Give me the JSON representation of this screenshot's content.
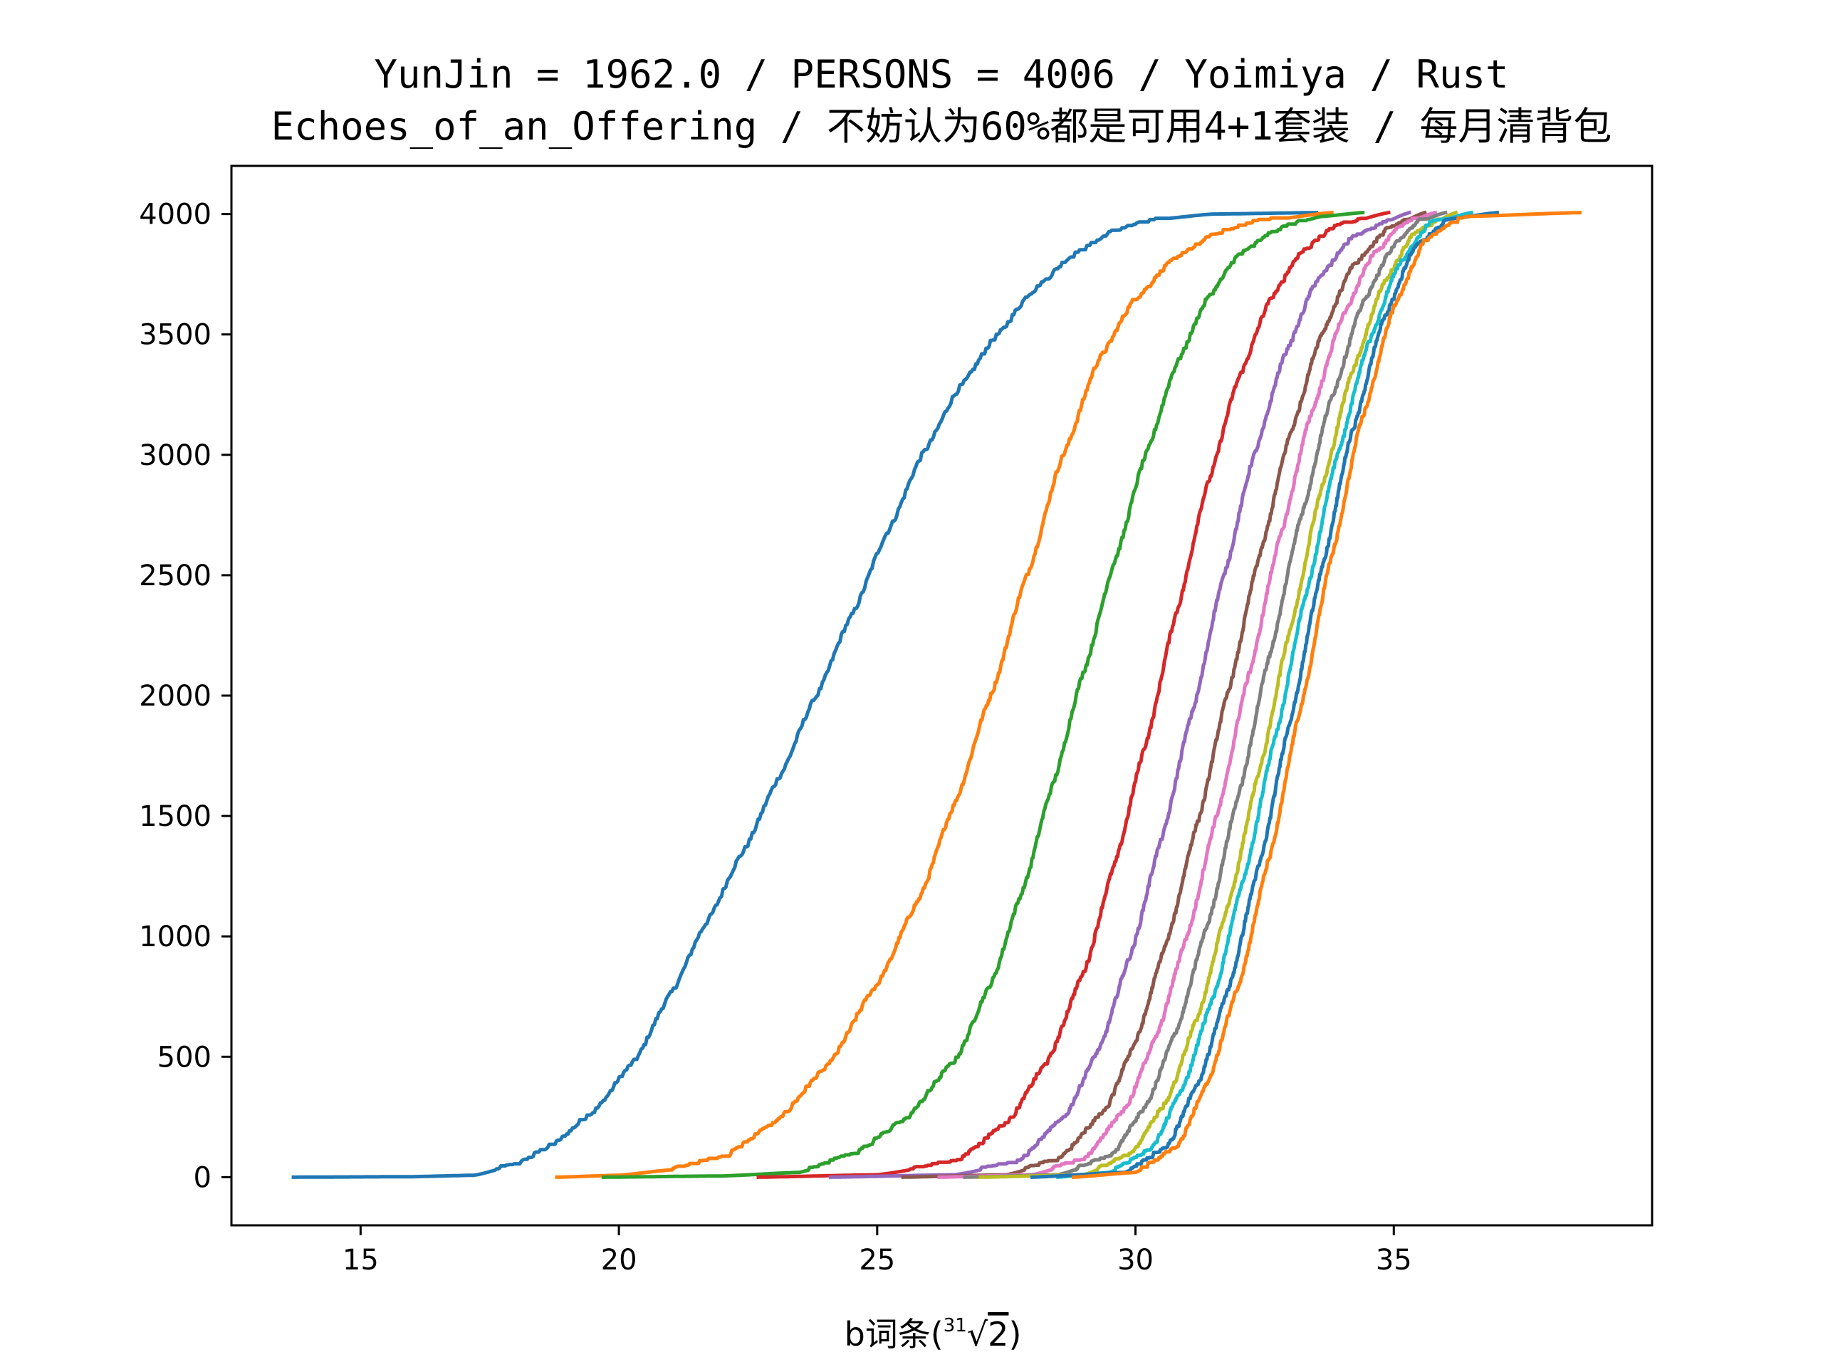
{
  "chart_data": {
    "type": "line",
    "title": [
      "YunJin = 1962.0 / PERSONS = 4006 / Yoimiya / Rust",
      "Echoes_of_an_Offering / 不妨认为60%都是可用4+1套装 / 每月清背包"
    ],
    "xlabel": "b词条(∛2)",
    "xlabel_parts": {
      "prefix": "b词条(",
      "root_index": "31",
      "radicand": "2",
      "suffix": ")"
    },
    "ylabel": "",
    "xlim": [
      12.5,
      40.0
    ],
    "ylim": [
      -200,
      4200
    ],
    "x_ticks": [
      15,
      20,
      25,
      30,
      35
    ],
    "y_ticks": [
      0,
      500,
      1000,
      1500,
      2000,
      2500,
      3000,
      3500,
      4000
    ],
    "grid": false,
    "legend": "none",
    "total": 4006,
    "series": [
      {
        "color": "#1f77b4",
        "start": 13.7,
        "end": 33.5,
        "points": [
          [
            13.7,
            0
          ],
          [
            16,
            2
          ],
          [
            17.2,
            8
          ],
          [
            18,
            50
          ],
          [
            18.7,
            130
          ],
          [
            19.5,
            270
          ],
          [
            20.3,
            480
          ],
          [
            21,
            760
          ],
          [
            21.7,
            1060
          ],
          [
            22.4,
            1350
          ],
          [
            23.1,
            1660
          ],
          [
            23.8,
            1990
          ],
          [
            24.5,
            2330
          ],
          [
            25.2,
            2680
          ],
          [
            25.9,
            3010
          ],
          [
            26.6,
            3280
          ],
          [
            27.3,
            3490
          ],
          [
            28,
            3680
          ],
          [
            28.8,
            3830
          ],
          [
            29.6,
            3930
          ],
          [
            30.5,
            3980
          ],
          [
            31.5,
            4000
          ],
          [
            33.5,
            4006
          ]
        ]
      },
      {
        "color": "#ff7f0e",
        "start": 18.8,
        "end": 33.8,
        "points": [
          [
            18.8,
            0
          ],
          [
            20,
            8
          ],
          [
            21,
            30
          ],
          [
            22,
            80
          ],
          [
            23,
            220
          ],
          [
            24,
            450
          ],
          [
            25,
            800
          ],
          [
            25.8,
            1150
          ],
          [
            26.5,
            1550
          ],
          [
            27.2,
            2000
          ],
          [
            27.9,
            2500
          ],
          [
            28.6,
            3000
          ],
          [
            29.3,
            3400
          ],
          [
            30,
            3650
          ],
          [
            30.8,
            3820
          ],
          [
            31.6,
            3920
          ],
          [
            32.4,
            3970
          ],
          [
            33.8,
            4006
          ]
        ]
      },
      {
        "color": "#2ca02c",
        "start": 19.7,
        "end": 34.4,
        "points": [
          [
            19.7,
            0
          ],
          [
            22,
            5
          ],
          [
            23.5,
            20
          ],
          [
            24.5,
            90
          ],
          [
            25.5,
            230
          ],
          [
            26.5,
            480
          ],
          [
            27.2,
            800
          ],
          [
            27.8,
            1180
          ],
          [
            28.4,
            1630
          ],
          [
            29,
            2100
          ],
          [
            29.6,
            2560
          ],
          [
            30.2,
            3000
          ],
          [
            30.8,
            3380
          ],
          [
            31.4,
            3650
          ],
          [
            32,
            3830
          ],
          [
            32.8,
            3940
          ],
          [
            33.6,
            3990
          ],
          [
            34.4,
            4006
          ]
        ]
      },
      {
        "color": "#d62728",
        "start": 22.7,
        "end": 34.9,
        "points": [
          [
            22.7,
            0
          ],
          [
            25,
            10
          ],
          [
            26.5,
            60
          ],
          [
            27.5,
            220
          ],
          [
            28.3,
            480
          ],
          [
            29,
            850
          ],
          [
            29.6,
            1300
          ],
          [
            30.2,
            1800
          ],
          [
            30.8,
            2350
          ],
          [
            31.4,
            2880
          ],
          [
            32,
            3320
          ],
          [
            32.6,
            3640
          ],
          [
            33.2,
            3840
          ],
          [
            33.9,
            3950
          ],
          [
            34.9,
            4006
          ]
        ]
      },
      {
        "color": "#9467bd",
        "start": 24.1,
        "end": 35.3,
        "points": [
          [
            24.1,
            0
          ],
          [
            26.5,
            10
          ],
          [
            27.7,
            60
          ],
          [
            28.6,
            240
          ],
          [
            29.3,
            530
          ],
          [
            29.9,
            920
          ],
          [
            30.5,
            1400
          ],
          [
            31.1,
            1930
          ],
          [
            31.7,
            2490
          ],
          [
            32.3,
            3000
          ],
          [
            32.9,
            3420
          ],
          [
            33.5,
            3720
          ],
          [
            34.2,
            3900
          ],
          [
            35.3,
            4006
          ]
        ]
      },
      {
        "color": "#8c564b",
        "start": 25.5,
        "end": 35.6,
        "points": [
          [
            25.5,
            0
          ],
          [
            27.5,
            10
          ],
          [
            28.5,
            70
          ],
          [
            29.4,
            270
          ],
          [
            30,
            560
          ],
          [
            30.6,
            970
          ],
          [
            31.2,
            1470
          ],
          [
            31.8,
            2020
          ],
          [
            32.4,
            2580
          ],
          [
            33,
            3090
          ],
          [
            33.6,
            3500
          ],
          [
            34.2,
            3780
          ],
          [
            34.9,
            3940
          ],
          [
            35.6,
            4006
          ]
        ]
      },
      {
        "color": "#e377c2",
        "start": 26.2,
        "end": 35.8,
        "points": [
          [
            26.2,
            0
          ],
          [
            28,
            10
          ],
          [
            29,
            70
          ],
          [
            29.8,
            280
          ],
          [
            30.4,
            580
          ],
          [
            31,
            1000
          ],
          [
            31.6,
            1520
          ],
          [
            32.2,
            2090
          ],
          [
            32.8,
            2660
          ],
          [
            33.4,
            3170
          ],
          [
            34,
            3570
          ],
          [
            34.6,
            3830
          ],
          [
            35.2,
            3960
          ],
          [
            35.8,
            4006
          ]
        ]
      },
      {
        "color": "#7f7f7f",
        "start": 26.7,
        "end": 36.0,
        "points": [
          [
            26.7,
            0
          ],
          [
            28.5,
            10
          ],
          [
            29.5,
            80
          ],
          [
            30.2,
            290
          ],
          [
            30.8,
            610
          ],
          [
            31.4,
            1050
          ],
          [
            32,
            1590
          ],
          [
            32.6,
            2170
          ],
          [
            33.2,
            2740
          ],
          [
            33.8,
            3240
          ],
          [
            34.4,
            3630
          ],
          [
            35,
            3870
          ],
          [
            35.5,
            3970
          ],
          [
            36,
            4006
          ]
        ]
      },
      {
        "color": "#bcbd22",
        "start": 27.0,
        "end": 36.2,
        "points": [
          [
            27,
            0
          ],
          [
            29,
            10
          ],
          [
            29.9,
            90
          ],
          [
            30.6,
            310
          ],
          [
            31.2,
            660
          ],
          [
            31.8,
            1130
          ],
          [
            32.4,
            1690
          ],
          [
            33,
            2280
          ],
          [
            33.6,
            2860
          ],
          [
            34.2,
            3350
          ],
          [
            34.8,
            3710
          ],
          [
            35.4,
            3920
          ],
          [
            36.2,
            4006
          ]
        ]
      },
      {
        "color": "#17becf",
        "start": 28.5,
        "end": 36.5,
        "points": [
          [
            28.5,
            0
          ],
          [
            29.5,
            20
          ],
          [
            30.3,
            110
          ],
          [
            30.9,
            360
          ],
          [
            31.5,
            740
          ],
          [
            32.1,
            1240
          ],
          [
            32.7,
            1820
          ],
          [
            33.3,
            2420
          ],
          [
            33.9,
            2990
          ],
          [
            34.5,
            3460
          ],
          [
            35.1,
            3790
          ],
          [
            35.7,
            3960
          ],
          [
            36.5,
            4006
          ]
        ]
      },
      {
        "color": "#1f77b4",
        "start": 28.0,
        "end": 37.0,
        "points": [
          [
            28,
            0
          ],
          [
            29.8,
            20
          ],
          [
            30.6,
            120
          ],
          [
            31.2,
            380
          ],
          [
            31.8,
            780
          ],
          [
            32.4,
            1300
          ],
          [
            33,
            1900
          ],
          [
            33.6,
            2520
          ],
          [
            34.2,
            3100
          ],
          [
            34.8,
            3560
          ],
          [
            35.4,
            3860
          ],
          [
            36.1,
            3980
          ],
          [
            37,
            4006
          ]
        ]
      },
      {
        "color": "#ff7f0e",
        "start": 28.8,
        "end": 38.6,
        "points": [
          [
            28.8,
            0
          ],
          [
            30,
            20
          ],
          [
            30.8,
            120
          ],
          [
            31.4,
            390
          ],
          [
            32,
            800
          ],
          [
            32.6,
            1330
          ],
          [
            33.2,
            1950
          ],
          [
            33.8,
            2580
          ],
          [
            34.4,
            3160
          ],
          [
            35,
            3610
          ],
          [
            35.6,
            3890
          ],
          [
            36.4,
            3990
          ],
          [
            38.6,
            4006
          ]
        ]
      }
    ]
  }
}
